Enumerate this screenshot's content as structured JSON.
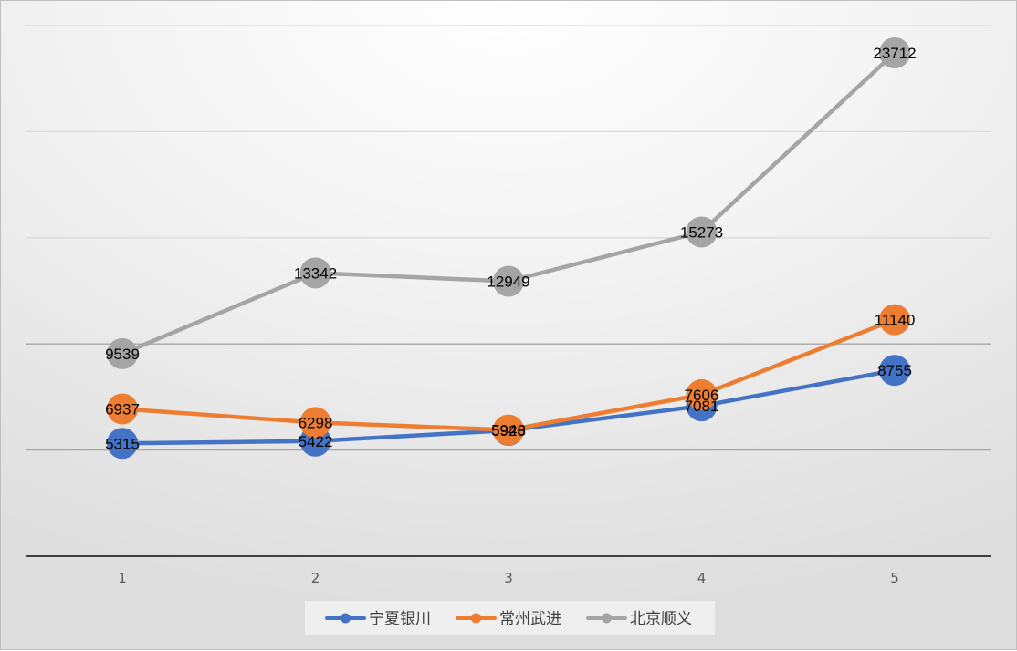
{
  "chart_data": {
    "type": "line",
    "categories": [
      "1",
      "2",
      "3",
      "4",
      "5"
    ],
    "series": [
      {
        "name": "宁夏银川",
        "color": "#4472c4",
        "values": [
          5315,
          5422,
          5928,
          7081,
          8755
        ]
      },
      {
        "name": "常州武进",
        "color": "#ed7d31",
        "values": [
          6937,
          6298,
          5946,
          7606,
          11140
        ]
      },
      {
        "name": "北京顺义",
        "color": "#a5a5a5",
        "values": [
          9539,
          13342,
          12949,
          15273,
          23712
        ]
      }
    ],
    "data_labels": [
      [
        "5315",
        "5422",
        "5928",
        "7081",
        "8755"
      ],
      [
        "6937",
        "6298",
        "5946",
        "7606",
        "11140"
      ],
      [
        "9539",
        "13342",
        "12949",
        "15273",
        "23712"
      ]
    ],
    "ylim": [
      0,
      25000
    ],
    "grid": true,
    "legend": "bottom",
    "title": "",
    "xlabel": "",
    "ylabel": ""
  }
}
